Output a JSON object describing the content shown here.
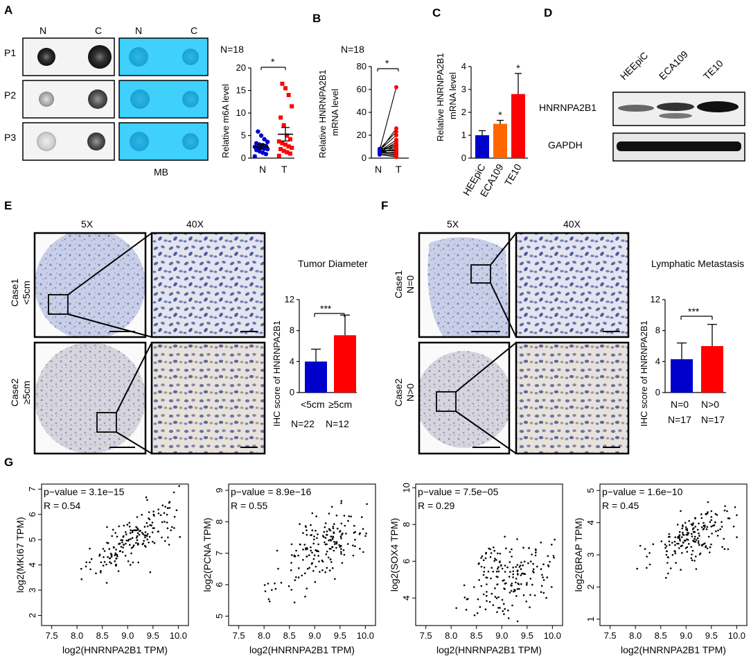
{
  "figure": {
    "panels": {
      "A": "A",
      "B": "B",
      "C": "C",
      "D": "D",
      "E": "E",
      "F": "F",
      "G": "G"
    },
    "dotblot": {
      "col_left": "N",
      "col_right": "C",
      "rows": [
        "P1",
        "P2",
        "P3"
      ],
      "mb_label": "MB"
    },
    "m6a": {
      "title": "N=18",
      "ylabel": "Relative m6A level",
      "yticks": [
        "0",
        "5",
        "10",
        "15",
        "20"
      ],
      "groups": [
        "N",
        "T"
      ],
      "sig": "*"
    },
    "mrna_pair": {
      "title": "N=18",
      "ylabel1": "Relative HNRNPA2B1",
      "ylabel2": "mRNA level",
      "yticks": [
        "0",
        "20",
        "40",
        "60",
        "80"
      ],
      "groups": [
        "N",
        "T"
      ],
      "sig": "*"
    },
    "cell_bar": {
      "ylabel1": "Relative HNRNPA2B1",
      "ylabel2": "mRNA level",
      "yticks": [
        "0",
        "1",
        "2",
        "3",
        "4"
      ],
      "categories": [
        "HEEpiC",
        "ECA109",
        "TE10"
      ],
      "sig": [
        "",
        "*",
        "*"
      ]
    },
    "western": {
      "lanes": [
        "HEEpiC",
        "ECA109",
        "TE10"
      ],
      "bands": [
        "HNRNPA2B1",
        "GAPDH"
      ]
    },
    "ihc_e": {
      "mag_low": "5X",
      "mag_high": "40X",
      "case1": "Case1",
      "case1_sub": "<5cm",
      "case2": "Case2",
      "case2_sub": "≥5cm",
      "title": "Tumor Diameter",
      "ylabel": "IHC score of HNRNPA2B1",
      "yticks": [
        "0",
        "4",
        "8",
        "12"
      ],
      "xlabels": [
        "<5cm",
        "≥5cm"
      ],
      "nlabels": [
        "N=22",
        "N=12"
      ],
      "sig": "***"
    },
    "ihc_f": {
      "mag_low": "5X",
      "mag_high": "40X",
      "case1": "Case1",
      "case1_sub": "N=0",
      "case2": "Case2",
      "case2_sub": "N>0",
      "title": "Lymphatic Metastasis",
      "ylabel": "IHC score of HNRNPA2B1",
      "yticks": [
        "0",
        "4",
        "8",
        "12"
      ],
      "xlabels": [
        "N=0",
        "N>0"
      ],
      "nlabels": [
        "N=17",
        "N=17"
      ],
      "sig": "***"
    },
    "scatter_xlabel": "log2(HNRNPA2B1 TPM)",
    "scatter_xticks": [
      "7.5",
      "8.0",
      "8.5",
      "9.0",
      "9.5",
      "10.0"
    ]
  },
  "colors": {
    "blue": "#0000cc",
    "orange": "#ff6600",
    "red": "#ff0000",
    "mb_blue": "#33ccff"
  },
  "chart_data": [
    {
      "id": "A-m6A",
      "type": "scatter",
      "title": "N=18",
      "ylabel": "Relative m6A level",
      "ylim": [
        0,
        20
      ],
      "series": [
        {
          "name": "N",
          "mean": 2.5,
          "sem": 0.5,
          "values": [
            0.4,
            0.9,
            1.2,
            1.5,
            1.8,
            2.0,
            2.1,
            2.3,
            2.4,
            2.5,
            2.7,
            2.9,
            3.0,
            3.3,
            3.6,
            4.2,
            5.0,
            5.9
          ]
        },
        {
          "name": "T",
          "mean": 5.3,
          "sem": 1.5,
          "values": [
            0.5,
            1.0,
            1.3,
            1.6,
            2.0,
            2.3,
            2.6,
            3.0,
            3.3,
            3.7,
            4.2,
            5.0,
            7.3,
            9.0,
            11.5,
            14.0,
            15.5,
            16.5
          ]
        }
      ],
      "significance": "*"
    },
    {
      "id": "B-mRNA",
      "type": "line",
      "title": "N=18",
      "ylabel": "Relative HNRNPA2B1 mRNA level",
      "ylim": [
        0,
        80
      ],
      "categories": [
        "N",
        "T"
      ],
      "pairs": [
        [
          3,
          1
        ],
        [
          4,
          2
        ],
        [
          5,
          3
        ],
        [
          6,
          4
        ],
        [
          5,
          5
        ],
        [
          7,
          6
        ],
        [
          6,
          7
        ],
        [
          5,
          8
        ],
        [
          8,
          9
        ],
        [
          4,
          10
        ],
        [
          6,
          11
        ],
        [
          7,
          12
        ],
        [
          5,
          14
        ],
        [
          6,
          16
        ],
        [
          7,
          20
        ],
        [
          8,
          23
        ],
        [
          6,
          26
        ],
        [
          7,
          62
        ]
      ],
      "significance": "*"
    },
    {
      "id": "C-cells",
      "type": "bar",
      "ylabel": "Relative HNRNPA2B1 mRNA level",
      "ylim": [
        0,
        4
      ],
      "categories": [
        "HEEpiC",
        "ECA109",
        "TE10"
      ],
      "values": [
        1.0,
        1.5,
        2.8
      ],
      "errors": [
        0.2,
        0.15,
        0.9
      ],
      "significance": [
        "",
        "*",
        "*"
      ]
    },
    {
      "id": "E-diameter",
      "type": "bar",
      "title": "Tumor Diameter",
      "ylabel": "IHC score of HNRNPA2B1",
      "ylim": [
        0,
        12
      ],
      "categories": [
        "<5cm",
        "≥5cm"
      ],
      "n": [
        "N=22",
        "N=12"
      ],
      "values": [
        4.0,
        7.4
      ],
      "errors": [
        1.6,
        2.6
      ],
      "significance": "***"
    },
    {
      "id": "F-metastasis",
      "type": "bar",
      "title": "Lymphatic Metastasis",
      "ylabel": "IHC score of HNRNPA2B1",
      "ylim": [
        0,
        12
      ],
      "categories": [
        "N=0",
        "N>0"
      ],
      "n": [
        "N=17",
        "N=17"
      ],
      "values": [
        4.3,
        6.0
      ],
      "errors": [
        2.1,
        2.8
      ],
      "significance": "***"
    },
    {
      "id": "G-MKI67",
      "type": "scatter",
      "xlabel": "log2(HNRNPA2B1 TPM)",
      "ylabel": "log2(MKI67 TPM)",
      "xlim": [
        7.3,
        10.2
      ],
      "ylim": [
        1.6,
        7.2
      ],
      "pvalue": "p−value = 3.1e−15",
      "R": "R = 0.54",
      "slope": 1.2,
      "center": [
        9.15,
        5.1
      ],
      "noise": 0.55,
      "n": 180,
      "seed": 11
    },
    {
      "id": "G-PCNA",
      "type": "scatter",
      "xlabel": "log2(HNRNPA2B1 TPM)",
      "ylabel": "log2(PCNA TPM)",
      "xlim": [
        7.3,
        10.2
      ],
      "ylim": [
        4.7,
        9.2
      ],
      "pvalue": "p−value = 8.9e−16",
      "R": "R = 0.55",
      "slope": 0.95,
      "center": [
        9.15,
        7.2
      ],
      "noise": 0.5,
      "n": 180,
      "seed": 23
    },
    {
      "id": "G-SOX4",
      "type": "scatter",
      "xlabel": "log2(HNRNPA2B1 TPM)",
      "ylabel": "log2(SOX4 TPM)",
      "xlim": [
        7.3,
        10.2
      ],
      "ylim": [
        2.5,
        10.2
      ],
      "pvalue": "p−value = 7.5e−05",
      "R": "R = 0.29",
      "slope": 1.0,
      "center": [
        9.15,
        5.0
      ],
      "noise": 1.0,
      "n": 180,
      "seed": 37
    },
    {
      "id": "G-BRAP",
      "type": "scatter",
      "xlabel": "log2(HNRNPA2B1 TPM)",
      "ylabel": "log2(BRAP TPM)",
      "xlim": [
        7.3,
        10.2
      ],
      "ylim": [
        0.8,
        5.2
      ],
      "pvalue": "p−value = 1.6e−10",
      "R": "R = 0.45",
      "slope": 0.75,
      "center": [
        9.15,
        3.6
      ],
      "noise": 0.38,
      "n": 180,
      "seed": 53
    }
  ],
  "scatter_panels": [
    {
      "ylabel": "log2(MKI67 TPM)",
      "pvalue": "p−value = 3.1e−15",
      "R": "R = 0.54",
      "yticks": [
        "2",
        "3",
        "4",
        "5",
        "6",
        "7"
      ]
    },
    {
      "ylabel": "log2(PCNA TPM)",
      "pvalue": "p−value = 8.9e−16",
      "R": "R = 0.55",
      "yticks": [
        "5",
        "6",
        "7",
        "8",
        "9"
      ]
    },
    {
      "ylabel": "log2(SOX4 TPM)",
      "pvalue": "p−value = 7.5e−05",
      "R": "R = 0.29",
      "yticks": [
        "4",
        "6",
        "8",
        "10"
      ]
    },
    {
      "ylabel": "log2(BRAP TPM)",
      "pvalue": "p−value = 1.6e−10",
      "R": "R = 0.45",
      "yticks": [
        "1",
        "2",
        "3",
        "4",
        "5"
      ]
    }
  ]
}
